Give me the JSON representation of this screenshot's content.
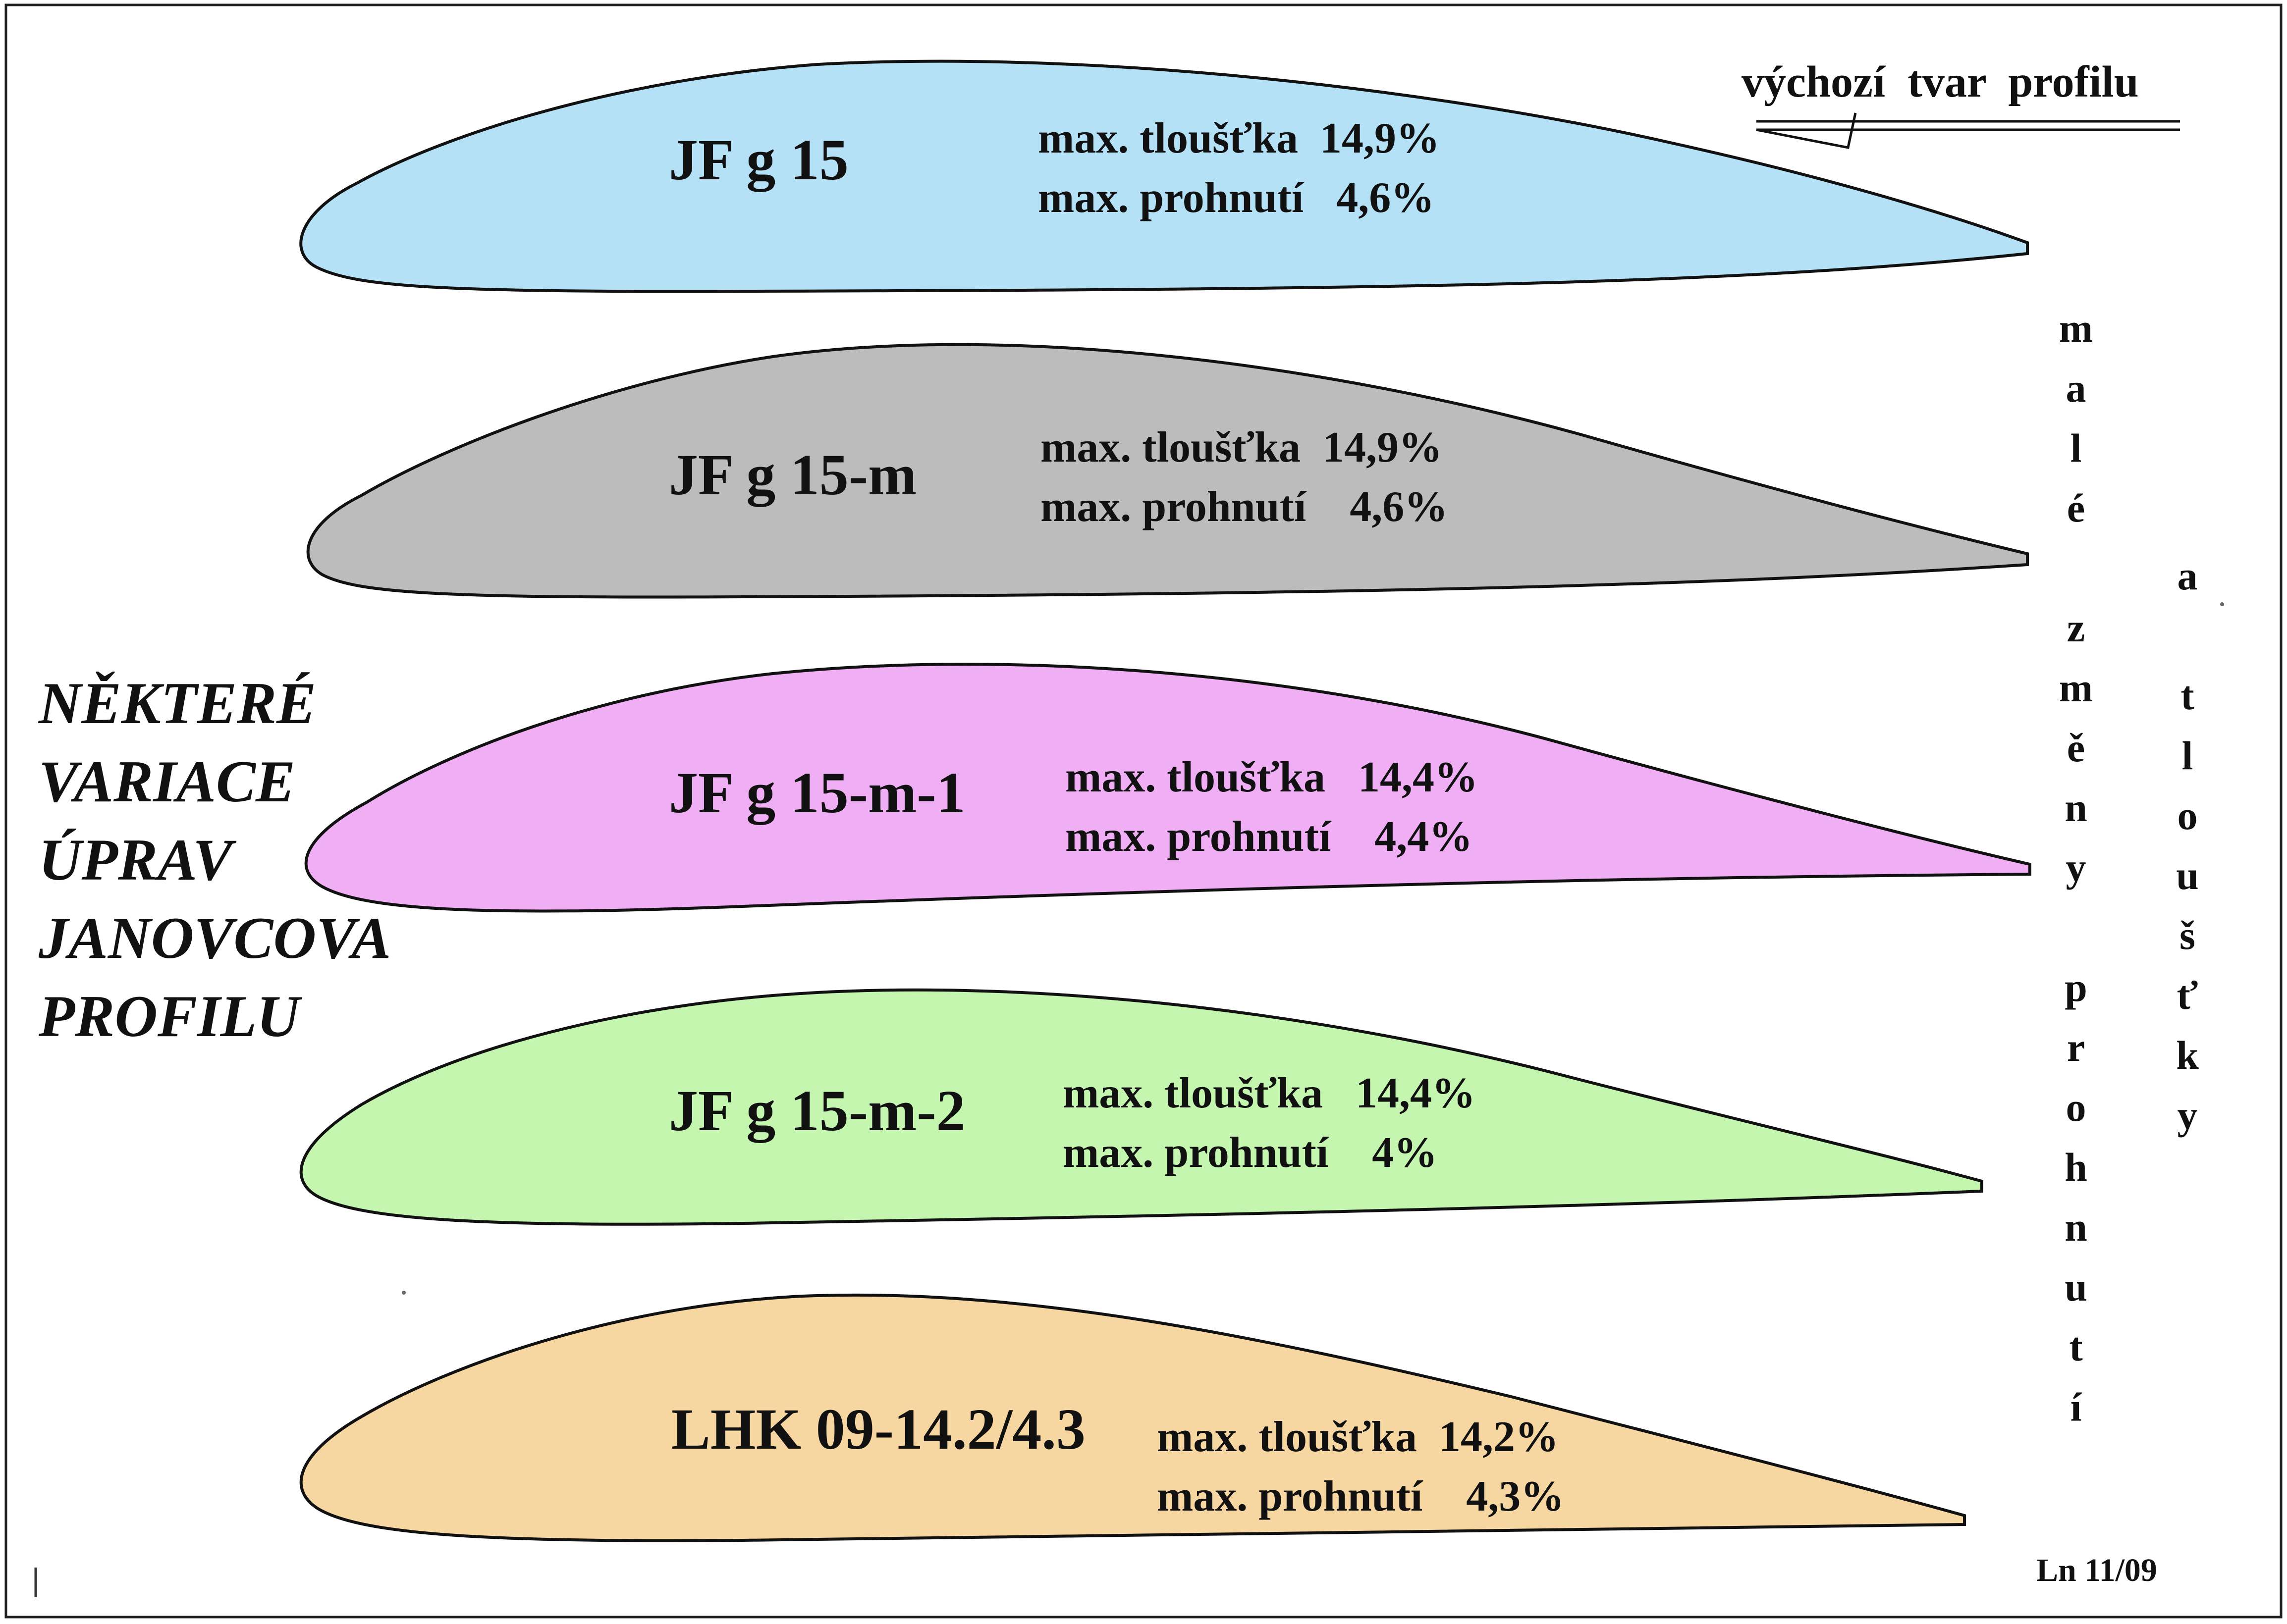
{
  "title_lines": [
    "NĚKTERÉ",
    "VARIACE",
    "ÚPRAV",
    "JANOVCOVA",
    "PROFILU"
  ],
  "note": "výchozí  tvar  profilu",
  "side_label_left": [
    "m",
    "a",
    "l",
    "é",
    "",
    "z",
    "m",
    "ě",
    "n",
    "y",
    "",
    "p",
    "r",
    "o",
    "h",
    "n",
    "u",
    "t",
    "í"
  ],
  "side_label_right": [
    "a",
    "",
    "t",
    "l",
    "o",
    "u",
    "š",
    "ť",
    "k",
    "y"
  ],
  "footer": "Ln 11/09",
  "profiles": [
    {
      "name": "JF g  15",
      "thickness": "max. tloušťka  14,9%",
      "camber": "max. prohnutí   4,6%",
      "color": "#b5e1f7"
    },
    {
      "name": "JF g  15-m",
      "thickness": "max. tloušťka  14,9%",
      "camber": "max. prohnutí    4,6%",
      "color": "#bcbcbc"
    },
    {
      "name": "JF g  15-m-1",
      "thickness": "max. tloušťka   14,4%",
      "camber": "max. prohnutí    4,4%",
      "color": "#f0aff5"
    },
    {
      "name": "JF g  15-m-2",
      "thickness": "max. tloušťka   14,4%",
      "camber": "max. prohnutí    4%",
      "color": "#c5f6b0"
    },
    {
      "name": "LHK 09-14.2/4.3",
      "thickness": "max. tloušťka  14,2%",
      "camber": "max. prohnutí    4,3%",
      "color": "#f6d6a1"
    }
  ]
}
